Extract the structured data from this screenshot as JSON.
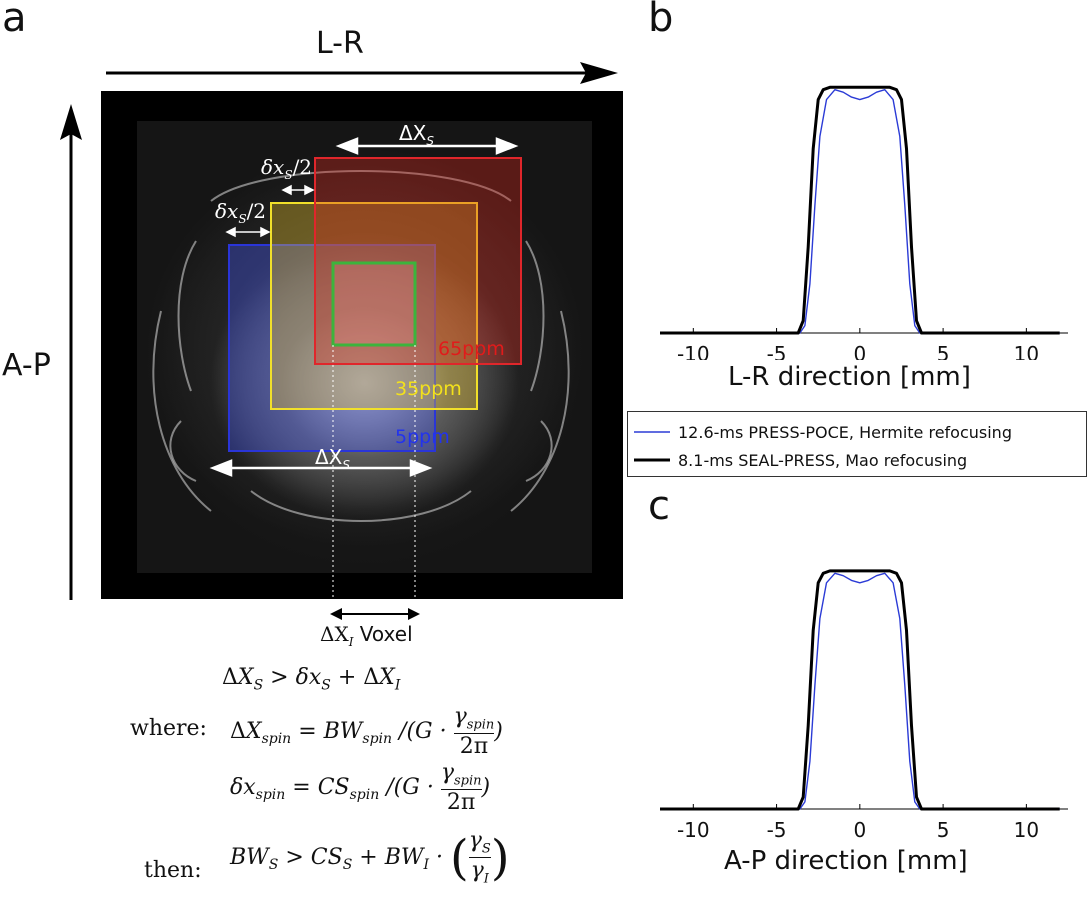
{
  "panel_letters": {
    "a": "a",
    "b": "b",
    "c": "c"
  },
  "panel_a": {
    "lr_label": "L-R",
    "ap_label": "A-P",
    "delta_xs_label": "ΔX",
    "delta_xs_sub": "S",
    "small_dx_label": "δx",
    "small_dx_sub": "S",
    "small_dx_frac": "/2",
    "ppm_labels": [
      {
        "text": "65ppm",
        "color": "#e11b1b"
      },
      {
        "text": "35ppm",
        "color": "#f3e11c"
      },
      {
        "text": "5ppm",
        "color": "#2233ee"
      }
    ],
    "voxel_label": "Voxel",
    "delta_xi_label": "ΔX",
    "delta_xi_sub": "I",
    "box_colors": {
      "red": "#e0262b",
      "yellow": "#f1e02a",
      "blue": "#2a35d8",
      "green": "#3cb43c"
    }
  },
  "formulas": {
    "line1": "ΔX_S > δx_S + ΔX_I",
    "where_label": "where:",
    "line2": "ΔX_spin = BW_spin /(G · γ_spin / 2π)",
    "line3": "δx_spin = CS_spin /(G · γ_spin / 2π)",
    "then_label": "then:",
    "line4": "BW_S > CS_S + BW_I · (γ_S / γ_I)"
  },
  "legend": {
    "entries": [
      {
        "label": "12.6-ms PRESS-POCE, Hermite refocusing",
        "color": "#2b3bd6"
      },
      {
        "label": "8.1-ms SEAL-PRESS, Mao refocusing",
        "color": "#000000"
      }
    ]
  },
  "chart_data": [
    {
      "type": "line",
      "panel": "b",
      "xlabel": "L-R direction [mm]",
      "ylabel": "",
      "xlim": [
        -12,
        12.5
      ],
      "ylim": [
        0,
        1.05
      ],
      "xticks": [
        -10,
        -5,
        0,
        5,
        10
      ],
      "series": [
        {
          "name": "12.6-ms PRESS-POCE, Hermite refocusing",
          "x": [
            -12,
            -3.6,
            -3.3,
            -3.0,
            -2.7,
            -2.4,
            -2.0,
            -1.5,
            -1.0,
            -0.5,
            0.0,
            0.5,
            1.0,
            1.5,
            2.0,
            2.4,
            2.7,
            3.0,
            3.3,
            3.6,
            12
          ],
          "y": [
            0,
            0,
            0.03,
            0.2,
            0.52,
            0.8,
            0.95,
            0.99,
            0.98,
            0.96,
            0.95,
            0.96,
            0.98,
            0.99,
            0.95,
            0.8,
            0.52,
            0.2,
            0.03,
            0,
            0
          ]
        },
        {
          "name": "8.1-ms SEAL-PRESS, Mao refocusing",
          "x": [
            -12,
            -3.7,
            -3.4,
            -3.1,
            -2.8,
            -2.5,
            -2.2,
            -1.8,
            -1.0,
            0.0,
            1.0,
            1.8,
            2.2,
            2.5,
            2.8,
            3.1,
            3.4,
            3.7,
            12
          ],
          "y": [
            0,
            0,
            0.05,
            0.35,
            0.75,
            0.95,
            0.99,
            1.0,
            1.0,
            1.0,
            1.0,
            1.0,
            0.99,
            0.95,
            0.75,
            0.35,
            0.05,
            0,
            0
          ]
        }
      ]
    },
    {
      "type": "line",
      "panel": "c",
      "xlabel": "A-P direction [mm]",
      "ylabel": "",
      "xlim": [
        -12,
        12.5
      ],
      "ylim": [
        0,
        1.05
      ],
      "xticks": [
        -10,
        -5,
        0,
        5,
        10
      ],
      "series": [
        {
          "name": "12.6-ms PRESS-POCE, Hermite refocusing",
          "x": [
            -12,
            -3.6,
            -3.3,
            -3.0,
            -2.7,
            -2.4,
            -2.0,
            -1.5,
            -1.0,
            -0.5,
            0.0,
            0.5,
            1.0,
            1.5,
            2.0,
            2.4,
            2.7,
            3.0,
            3.3,
            3.6,
            12
          ],
          "y": [
            0,
            0,
            0.03,
            0.2,
            0.52,
            0.8,
            0.95,
            0.99,
            0.98,
            0.96,
            0.95,
            0.96,
            0.98,
            0.99,
            0.95,
            0.8,
            0.52,
            0.2,
            0.03,
            0,
            0
          ]
        },
        {
          "name": "8.1-ms SEAL-PRESS, Mao refocusing",
          "x": [
            -12,
            -3.7,
            -3.4,
            -3.1,
            -2.8,
            -2.5,
            -2.2,
            -1.8,
            -1.0,
            0.0,
            1.0,
            1.8,
            2.2,
            2.5,
            2.8,
            3.1,
            3.4,
            3.7,
            12
          ],
          "y": [
            0,
            0,
            0.05,
            0.35,
            0.75,
            0.95,
            0.99,
            1.0,
            1.0,
            1.0,
            1.0,
            1.0,
            0.99,
            0.95,
            0.75,
            0.35,
            0.05,
            0,
            0
          ]
        }
      ]
    }
  ]
}
